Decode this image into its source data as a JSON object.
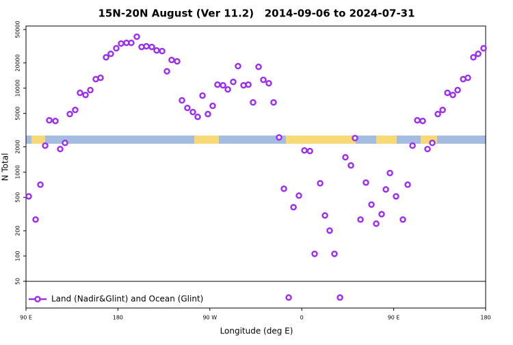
{
  "chart_data": {
    "type": "scatter",
    "title": "15N-20N August (Ver 11.2)   2014-09-06 to 2024-07-31",
    "x_label": "Longitude (deg E)",
    "y_label": "N Total",
    "xlim": [
      90,
      540
    ],
    "xticks": [
      {
        "value": 90,
        "label": "90 E"
      },
      180,
      {
        "value": 270,
        "label": "90 W"
      },
      {
        "value": 360,
        "label": "0"
      },
      {
        "value": 450,
        "label": "90 E"
      },
      {
        "value": 540,
        "label": "180"
      }
    ],
    "ylim": [
      24,
      55000
    ],
    "yscale": "log",
    "yticks": [
      50,
      100,
      200,
      500,
      1000,
      2000,
      5000,
      10000,
      20000,
      50000
    ],
    "legend": "lower left",
    "series": [
      {
        "name": "Land (Nadir&Glint) and Ocean (Glint)",
        "color": "#9b30f0",
        "x": [
          92.7,
          99.4,
          104.1,
          108.8,
          112.8,
          118.8,
          123.5,
          128.2,
          132.9,
          138.2,
          142.9,
          148.3,
          153,
          158.3,
          163,
          168.4,
          173,
          178.4,
          183.1,
          188.4,
          193.1,
          198.5,
          203.2,
          207.9,
          213.2,
          217.9,
          223.3,
          228,
          232.6,
          238,
          242.7,
          248,
          253.4,
          258.1,
          262.8,
          268.1,
          272.8,
          277.5,
          282.9,
          287.6,
          292.9,
          297.6,
          303,
          307.7,
          312.3,
          317.7,
          322.4,
          327.7,
          332.4,
          337.8,
          342.5,
          347.2,
          351.9,
          357.2,
          362.6,
          368,
          372.6,
          378,
          382.7,
          387.3,
          392,
          397.4,
          402.7,
          408.1,
          412.1,
          417.5,
          422.8,
          428.2,
          432.9,
          438.2,
          442.3,
          446.3,
          452.3,
          459,
          463.7,
          468.4,
          473.1,
          478.4,
          483.1,
          487.8,
          493.2,
          497.9,
          502.6,
          507.9,
          512.6,
          518,
          522.6,
          528,
          532.7,
          538
        ],
        "values": [
          514,
          272,
          708,
          2066,
          4140,
          4065,
          1883,
          2228,
          4910,
          5495,
          8790,
          8300,
          9480,
          12800,
          13280,
          23300,
          25640,
          29840,
          34030,
          34670,
          34670,
          41020,
          30970,
          31550,
          30970,
          28180,
          27660,
          15890,
          21670,
          20850,
          7150,
          5810,
          5190,
          4550,
          8150,
          4910,
          6150,
          11010,
          10810,
          9660,
          11880,
          18280,
          10810,
          11010,
          6760,
          17950,
          12560,
          11430,
          6760,
          2590,
          633,
          32,
          381,
          524,
          1810,
          1780,
          106,
          735,
          304,
          201,
          106,
          32,
          1500,
          1200,
          2540,
          272,
          750,
          410,
          243,
          315,
          621,
          975,
          514,
          272,
          708,
          2066,
          4140,
          4065,
          1883,
          2228,
          4910,
          5495,
          8790,
          8300,
          9480,
          12800,
          13280,
          23300,
          25640,
          29840
        ]
      }
    ]
  }
}
